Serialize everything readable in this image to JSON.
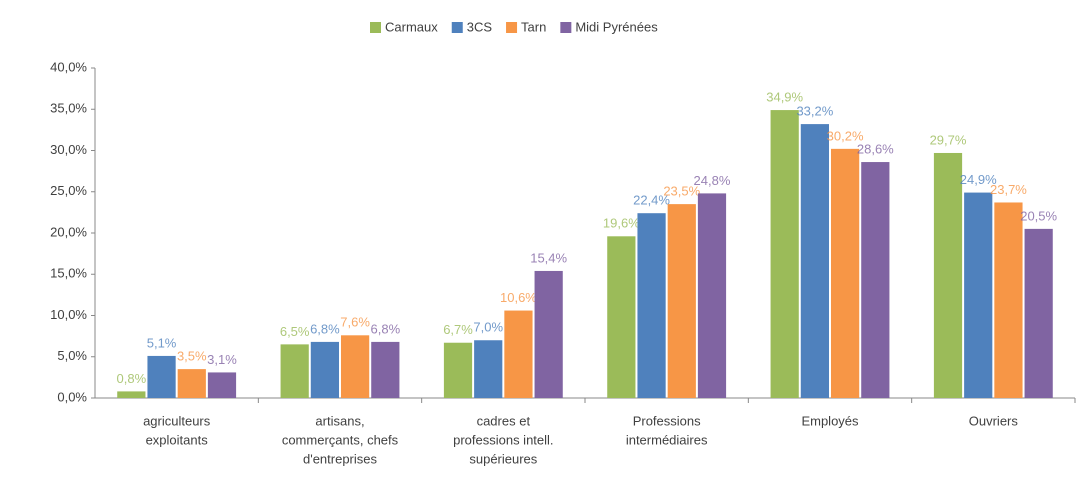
{
  "chart_data": {
    "type": "bar",
    "categories": [
      [
        "agriculteurs",
        "exploitants"
      ],
      [
        "artisans,",
        "commerçants, chefs",
        "d'entreprises"
      ],
      [
        "cadres et",
        "professions intell.",
        "supérieures"
      ],
      [
        "Professions",
        "intermédiaires"
      ],
      [
        "Employés"
      ],
      [
        "Ouvriers"
      ]
    ],
    "series": [
      {
        "name": "Carmaux",
        "color": "#9bbb59",
        "values": [
          0.8,
          6.5,
          6.7,
          19.6,
          34.9,
          29.7
        ],
        "value_labels": [
          "0,8%",
          "6,5%",
          "6,7%",
          "19,6%",
          "34,9%",
          "29,7%"
        ]
      },
      {
        "name": "3CS",
        "color": "#4f81bd",
        "values": [
          5.1,
          6.8,
          7.0,
          22.4,
          33.2,
          24.9
        ],
        "value_labels": [
          "5,1%",
          "6,8%",
          "7,0%",
          "22,4%",
          "33,2%",
          "24,9%"
        ]
      },
      {
        "name": "Tarn",
        "color": "#f79646",
        "values": [
          3.5,
          7.6,
          10.6,
          23.5,
          30.2,
          23.7
        ],
        "value_labels": [
          "3,5%",
          "7,6%",
          "10,6%",
          "23,5%",
          "30,2%",
          "23,7%"
        ]
      },
      {
        "name": "Midi Pyrénées",
        "color": "#8064a2",
        "values": [
          3.1,
          6.8,
          15.4,
          24.8,
          28.6,
          20.5
        ],
        "value_labels": [
          "3,1%",
          "6,8%",
          "15,4%",
          "24,8%",
          "28,6%",
          "20,5%"
        ]
      }
    ],
    "ylim": [
      0,
      40
    ],
    "yticks": [
      {
        "value": 0,
        "label": "0,0%"
      },
      {
        "value": 5,
        "label": "5,0%"
      },
      {
        "value": 10,
        "label": "10,0%"
      },
      {
        "value": 15,
        "label": "15,0%"
      },
      {
        "value": 20,
        "label": "20,0%"
      },
      {
        "value": 25,
        "label": "25,0%"
      },
      {
        "value": 30,
        "label": "30,0%"
      },
      {
        "value": 35,
        "label": "35,0%"
      },
      {
        "value": 40,
        "label": "40,0%"
      }
    ],
    "legend": "top",
    "grid": false
  }
}
